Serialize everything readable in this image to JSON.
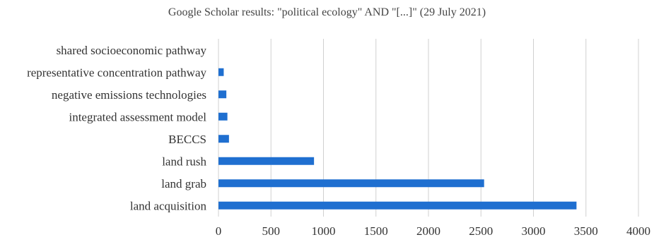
{
  "chart_data": {
    "type": "bar",
    "orientation": "horizontal",
    "title": "Google Scholar results: \"political ecology\" AND \"[...]\" (29 July 2021)",
    "xlabel": "",
    "ylabel": "",
    "categories": [
      "shared socioeconomic pathway",
      "representative concentration pathway",
      "negative emissions technologies",
      "integrated assessment model",
      "BECCS",
      "land rush",
      "land grab",
      "land acquisition"
    ],
    "values": [
      0,
      50,
      75,
      85,
      100,
      910,
      2530,
      3410
    ],
    "xlim": [
      0,
      4000
    ],
    "xticks": [
      0,
      500,
      1000,
      1500,
      2000,
      2500,
      3000,
      3500,
      4000
    ],
    "grid": "vertical",
    "legend": "none",
    "bar_color": "#1f6fd0"
  }
}
